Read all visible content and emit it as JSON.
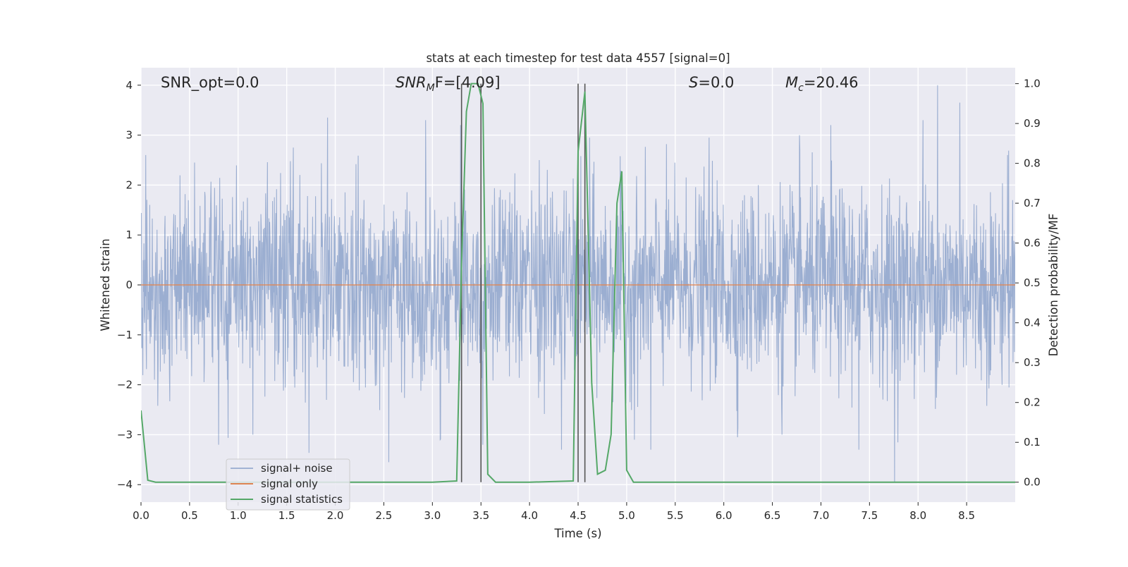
{
  "chart_data": {
    "type": "line",
    "title": "stats at each timestep for test data 4557 [signal=0]",
    "xlabel": "Time (s)",
    "ylabel_left": "Whitened strain",
    "ylabel_right": "Detection probability/MF",
    "xlim": [
      0,
      9
    ],
    "ylim_left": [
      -4.35,
      4.35
    ],
    "ylim_right": [
      -0.05,
      1.04
    ],
    "x_ticks": [
      "0.0",
      "0.5",
      "1.0",
      "1.5",
      "2.0",
      "2.5",
      "3.0",
      "3.5",
      "4.0",
      "4.5",
      "5.0",
      "5.5",
      "6.0",
      "6.5",
      "7.0",
      "7.5",
      "8.0",
      "8.5"
    ],
    "x_tick_values": [
      0.0,
      0.5,
      1.0,
      1.5,
      2.0,
      2.5,
      3.0,
      3.5,
      4.0,
      4.5,
      5.0,
      5.5,
      6.0,
      6.5,
      7.0,
      7.5,
      8.0,
      8.5
    ],
    "y_ticks_left": [
      "−4",
      "−3",
      "−2",
      "−1",
      "0",
      "1",
      "2",
      "3",
      "4"
    ],
    "y_tick_values_left": [
      -4,
      -3,
      -2,
      -1,
      0,
      1,
      2,
      3,
      4
    ],
    "y_ticks_right": [
      "0.0",
      "0.1",
      "0.2",
      "0.3",
      "0.4",
      "0.5",
      "0.6",
      "0.7",
      "0.8",
      "0.9",
      "1.0"
    ],
    "y_tick_values_right": [
      0.0,
      0.1,
      0.2,
      0.3,
      0.4,
      0.5,
      0.6,
      0.7,
      0.8,
      0.9,
      1.0
    ],
    "grid": true,
    "legend_position": "lower-left",
    "annotations": {
      "snr_opt": "SNR_opt=0.0",
      "snr_mf_main": "SNR",
      "snr_mf_sub": "M",
      "snr_mf_rest": "F=[4.09]",
      "s_main": "S",
      "s_rest": "=0.0",
      "mc_main": "M",
      "mc_sub": "c",
      "mc_rest": "=20.46"
    },
    "vertical_lines_x": [
      3.3,
      3.5,
      4.5,
      4.57
    ],
    "series": [
      {
        "name": "signal+ noise",
        "color": "#4c72b0",
        "axis": "left",
        "note_noise": "whitened gaussian noise, approx. +/-2 typical, peaks to +4 / -3.9",
        "peak_x": [
          0.05,
          0.55,
          0.8,
          1.15,
          1.57,
          1.92,
          2.55,
          2.93,
          3.08,
          3.29,
          3.52,
          4.1,
          4.33,
          4.62,
          5.08,
          5.25,
          5.85,
          6.14,
          6.6,
          6.78,
          7.1,
          7.39,
          7.76,
          8.05,
          8.2,
          8.43,
          8.92
        ],
        "peak_y": [
          2.6,
          2.45,
          -3.2,
          -3.0,
          2.75,
          3.35,
          -3.55,
          3.3,
          -3.1,
          3.2,
          -3.2,
          2.5,
          -3.3,
          2.95,
          -3.1,
          -3.3,
          2.95,
          -3.05,
          -3.0,
          3.0,
          3.2,
          -3.3,
          -3.95,
          3.3,
          4.0,
          3.65,
          2.6
        ]
      },
      {
        "name": "signal only",
        "color": "#dd8452",
        "axis": "left",
        "x": [
          0,
          9
        ],
        "y": [
          0,
          0
        ]
      },
      {
        "name": "signal statistics",
        "color": "#55a868",
        "axis": "right",
        "x": [
          0.0,
          0.07,
          0.15,
          1.0,
          2.0,
          3.0,
          3.25,
          3.3,
          3.35,
          3.4,
          3.47,
          3.52,
          3.57,
          3.65,
          4.0,
          4.45,
          4.5,
          4.57,
          4.64,
          4.7,
          4.78,
          4.84,
          4.9,
          4.95,
          5.0,
          5.07,
          6.0,
          8.0,
          9.0
        ],
        "y": [
          0.18,
          0.005,
          0.0,
          0.0,
          0.0,
          0.0,
          0.003,
          0.55,
          0.93,
          1.0,
          1.0,
          0.95,
          0.02,
          0.0,
          0.0,
          0.003,
          0.83,
          0.98,
          0.25,
          0.02,
          0.03,
          0.12,
          0.7,
          0.78,
          0.03,
          0.0,
          0.0,
          0.0,
          0.0
        ]
      }
    ]
  }
}
